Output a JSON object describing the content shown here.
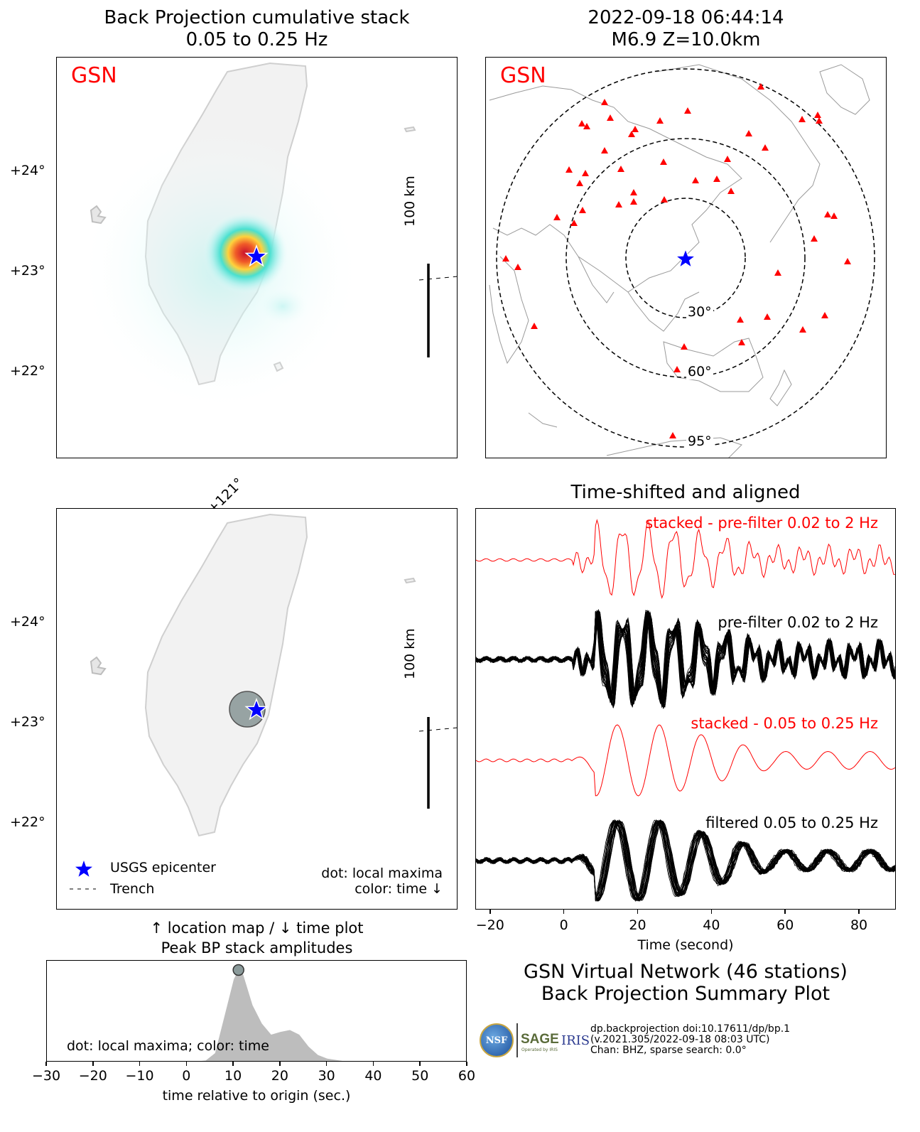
{
  "bp_map": {
    "title_line1": "Back Projection cumulative stack",
    "title_line2": "0.05 to 0.25 Hz",
    "network_label": "GSN",
    "lat_labels": [
      "+24°",
      "+23°",
      "+22°"
    ],
    "scale_label": "100 km"
  },
  "event": {
    "line1": "2022-09-18 06:44:14",
    "line2": "M6.9 Z=10.0km",
    "network_label": "GSN",
    "distance_rings": [
      "30°",
      "60°",
      "95°"
    ],
    "colors": {
      "station": "#ff0000",
      "epicenter": "#0000ff"
    }
  },
  "loc_map": {
    "lon_label": "+121°",
    "lat_labels": [
      "+24°",
      "+23°",
      "+22°"
    ],
    "scale_label": "100 km",
    "legend_epicenter": "USGS epicenter",
    "legend_trench": "Trench",
    "note_line1": "dot: local maxima",
    "note_line2": "color: time ↓",
    "caption_line1": "↑ location map / ↓ time plot",
    "caption_line2": "Peak BP stack amplitudes"
  },
  "traces": {
    "title": "Time-shifted and aligned",
    "label_stacked_prefilter": "stacked - pre-filter 0.02 to 2 Hz",
    "label_prefilter": "pre-filter 0.02 to 2 Hz",
    "label_stacked_filtered": "stacked - 0.05 to 0.25 Hz",
    "label_filtered": "filtered 0.05 to 0.25 Hz",
    "xlabel": "Time (second)"
  },
  "summary": {
    "line1": "GSN Virtual Network (46 stations)",
    "line2": "Back Projection Summary Plot"
  },
  "credits": {
    "nsf": "NSF",
    "sage": "SAGE",
    "iris": "IRIS",
    "sage_sub": "Operated by IRIS",
    "line1": "dp.backprojection doi:10.17611/dp/bp.1",
    "line2": "(v.2021.305/2022-09-18 08:03 UTC)",
    "line3": "Chan: BHZ, sparse search: 0.0°"
  },
  "amp_plot": {
    "note": "dot: local maxima; color: time",
    "xlabel": "time relative to origin (sec.)"
  },
  "chart_data": [
    {
      "type": "area",
      "name": "peak_bp_stack_amplitudes",
      "xlabel": "time relative to origin (sec.)",
      "xlim": [
        -30,
        60
      ],
      "xticks": [
        -30,
        -20,
        -10,
        0,
        10,
        20,
        30,
        40,
        50,
        60
      ],
      "x": [
        0,
        4,
        6,
        8,
        10,
        11,
        12,
        14,
        16,
        18,
        20,
        22,
        24,
        26,
        28,
        30,
        34,
        38
      ],
      "y": [
        0,
        0.02,
        0.1,
        0.5,
        0.9,
        1.0,
        0.95,
        0.62,
        0.42,
        0.3,
        0.33,
        0.35,
        0.3,
        0.17,
        0.08,
        0.04,
        0.01,
        0
      ],
      "peak": {
        "x": 11,
        "y": 1.0
      },
      "note": "dot: local maxima; color: time"
    },
    {
      "type": "line",
      "name": "time_shifted_traces",
      "title": "Time-shifted and aligned",
      "xlabel": "Time (second)",
      "xlim": [
        -24,
        90
      ],
      "xticks": [
        -20,
        0,
        20,
        40,
        60,
        80
      ],
      "series": [
        {
          "name": "stacked - pre-filter 0.02 to 2 Hz",
          "color": "#ff0000"
        },
        {
          "name": "pre-filter 0.02 to 2 Hz",
          "color": "#000000"
        },
        {
          "name": "stacked - 0.05 to 0.25 Hz",
          "color": "#ff0000"
        },
        {
          "name": "filtered 0.05 to 0.25 Hz",
          "color": "#000000"
        }
      ]
    }
  ]
}
